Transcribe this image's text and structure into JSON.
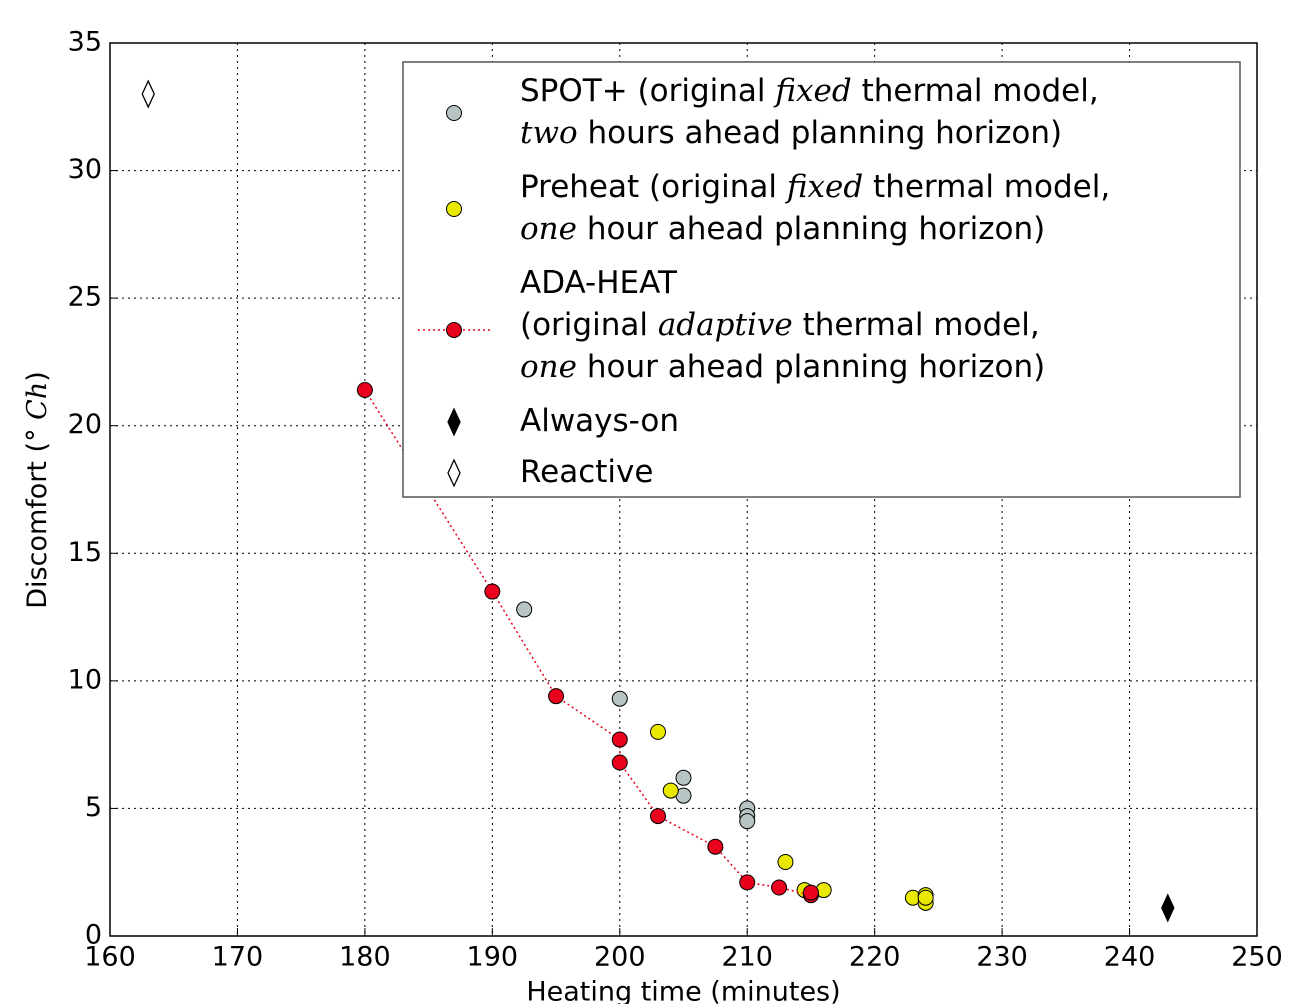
{
  "chart_data": {
    "type": "scatter",
    "xlabel": "Heating time (minutes)",
    "ylabel": [
      {
        "text": "Discomfort ("
      },
      {
        "text": "° Ch",
        "math": true
      },
      {
        "text": ")"
      }
    ],
    "xlim": [
      160,
      250
    ],
    "xticks": [
      160,
      170,
      180,
      190,
      200,
      210,
      220,
      230,
      240,
      250
    ],
    "ylim": [
      0,
      35
    ],
    "yticks": [
      0,
      5,
      10,
      15,
      20,
      25,
      30,
      35
    ],
    "grid": true,
    "legend": "upper right",
    "series": [
      {
        "name": [
          [
            {
              "text": "SPOT+ (original "
            },
            {
              "text": "fixed",
              "math": true
            },
            {
              "text": " thermal model,"
            }
          ],
          [
            {
              "text": "two",
              "math": true
            },
            {
              "text": " hours ahead planning horizon)"
            }
          ]
        ],
        "marker": "o",
        "color": "#b8c4c4",
        "x": [
          192.5,
          200,
          205,
          205,
          210,
          210,
          210
        ],
        "values": [
          12.8,
          9.3,
          6.2,
          5.5,
          5.0,
          4.7,
          4.5
        ]
      },
      {
        "name": [
          [
            {
              "text": "Preheat (original "
            },
            {
              "text": "fixed",
              "math": true
            },
            {
              "text": " thermal model,"
            }
          ],
          [
            {
              "text": "one",
              "math": true
            },
            {
              "text": " hour ahead planning horizon)"
            }
          ]
        ],
        "marker": "o",
        "color": "#e8e800",
        "x": [
          203,
          204,
          213,
          214.5,
          216,
          223,
          224,
          224,
          224
        ],
        "values": [
          8.0,
          5.7,
          2.9,
          1.8,
          1.8,
          1.5,
          1.6,
          1.3,
          1.5
        ]
      },
      {
        "name": [
          [
            {
              "text": "ADA-HEAT"
            }
          ],
          [
            {
              "text": "(original "
            },
            {
              "text": "adaptive",
              "math": true
            },
            {
              "text": " thermal model,"
            }
          ],
          [
            {
              "text": "one",
              "math": true
            },
            {
              "text": " hour ahead planning horizon)"
            }
          ]
        ],
        "marker": "o",
        "color": "#e8001c",
        "linestyle": "dotted",
        "x": [
          180,
          190,
          195,
          200,
          200,
          203,
          207.5,
          210,
          212.5,
          215,
          215
        ],
        "values": [
          21.4,
          13.5,
          9.4,
          7.7,
          6.8,
          4.7,
          3.5,
          2.1,
          1.9,
          1.6,
          1.7
        ]
      },
      {
        "name": [
          [
            {
              "text": "Always-on"
            }
          ]
        ],
        "marker": "d",
        "color": "#000000",
        "x": [
          243
        ],
        "values": [
          1.1
        ]
      },
      {
        "name": [
          [
            {
              "text": "Reactive"
            }
          ]
        ],
        "marker": "d",
        "color": "#ffffff",
        "x": [
          163
        ],
        "values": [
          33
        ]
      }
    ]
  }
}
